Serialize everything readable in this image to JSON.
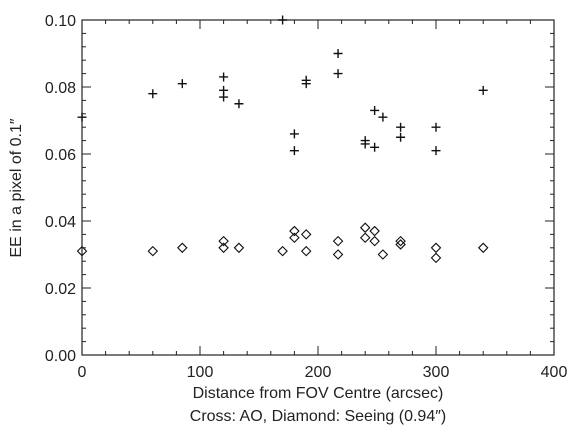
{
  "chart_data": {
    "type": "scatter",
    "xlabel": "Distance from FOV Centre (arcsec)",
    "ylabel": "EE in a pixel of 0.1″",
    "caption": "Cross: AO, Diamond: Seeing (0.94″)",
    "xlim": [
      0,
      400
    ],
    "ylim": [
      0,
      0.1
    ],
    "x_ticks": [
      0,
      100,
      200,
      300,
      400
    ],
    "x_tick_labels": [
      "0",
      "100",
      "200",
      "300",
      "400"
    ],
    "y_ticks": [
      0,
      0.02,
      0.04,
      0.06,
      0.08,
      0.1
    ],
    "y_tick_labels": [
      "0.00",
      "0.02",
      "0.04",
      "0.06",
      "0.08",
      "0.10"
    ],
    "grid": false,
    "series": [
      {
        "marker": "cross",
        "points": [
          {
            "x": 0,
            "y": 0.071
          },
          {
            "x": 60,
            "y": 0.078
          },
          {
            "x": 85,
            "y": 0.081
          },
          {
            "x": 120,
            "y": 0.083
          },
          {
            "x": 120,
            "y": 0.079
          },
          {
            "x": 120,
            "y": 0.077
          },
          {
            "x": 133,
            "y": 0.075
          },
          {
            "x": 170,
            "y": 0.1
          },
          {
            "x": 180,
            "y": 0.066
          },
          {
            "x": 180,
            "y": 0.061
          },
          {
            "x": 190,
            "y": 0.082
          },
          {
            "x": 190,
            "y": 0.081
          },
          {
            "x": 217,
            "y": 0.09
          },
          {
            "x": 217,
            "y": 0.084
          },
          {
            "x": 240,
            "y": 0.064
          },
          {
            "x": 240,
            "y": 0.063
          },
          {
            "x": 248,
            "y": 0.073
          },
          {
            "x": 248,
            "y": 0.062
          },
          {
            "x": 255,
            "y": 0.071
          },
          {
            "x": 270,
            "y": 0.068
          },
          {
            "x": 270,
            "y": 0.065
          },
          {
            "x": 300,
            "y": 0.068
          },
          {
            "x": 300,
            "y": 0.061
          },
          {
            "x": 340,
            "y": 0.079
          }
        ]
      },
      {
        "marker": "diamond",
        "points": [
          {
            "x": 0,
            "y": 0.031
          },
          {
            "x": 60,
            "y": 0.031
          },
          {
            "x": 85,
            "y": 0.032
          },
          {
            "x": 120,
            "y": 0.034
          },
          {
            "x": 120,
            "y": 0.032
          },
          {
            "x": 133,
            "y": 0.032
          },
          {
            "x": 170,
            "y": 0.031
          },
          {
            "x": 180,
            "y": 0.037
          },
          {
            "x": 180,
            "y": 0.035
          },
          {
            "x": 190,
            "y": 0.036
          },
          {
            "x": 190,
            "y": 0.031
          },
          {
            "x": 217,
            "y": 0.034
          },
          {
            "x": 217,
            "y": 0.03
          },
          {
            "x": 240,
            "y": 0.038
          },
          {
            "x": 240,
            "y": 0.035
          },
          {
            "x": 248,
            "y": 0.037
          },
          {
            "x": 248,
            "y": 0.034
          },
          {
            "x": 255,
            "y": 0.03
          },
          {
            "x": 270,
            "y": 0.034
          },
          {
            "x": 270,
            "y": 0.033
          },
          {
            "x": 300,
            "y": 0.032
          },
          {
            "x": 300,
            "y": 0.029
          },
          {
            "x": 340,
            "y": 0.032
          }
        ]
      }
    ]
  }
}
